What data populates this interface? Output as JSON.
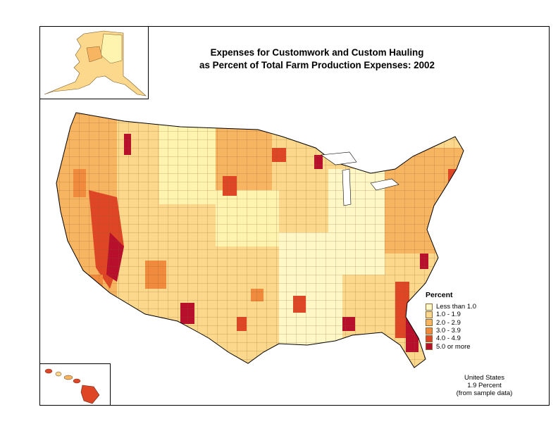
{
  "title": {
    "line1": "Expenses for Customwork and Custom Hauling",
    "line2": "as Percent of Total Farm Production Expenses:  2002"
  },
  "legend": {
    "title": "Percent",
    "items": [
      {
        "label": "Less than 1.0",
        "color": "#fff8c6"
      },
      {
        "label": "1.0 - 1.9",
        "color": "#fbd88c"
      },
      {
        "label": "2.0 - 2.9",
        "color": "#f7b461"
      },
      {
        "label": "3.0 - 3.9",
        "color": "#f08a3c"
      },
      {
        "label": "4.0 - 4.9",
        "color": "#df4626"
      },
      {
        "label": "5.0 or more",
        "color": "#b80f2c"
      }
    ]
  },
  "note": {
    "line1": "United States",
    "line2": "1.9 Percent",
    "line3": "(from sample data)"
  }
}
